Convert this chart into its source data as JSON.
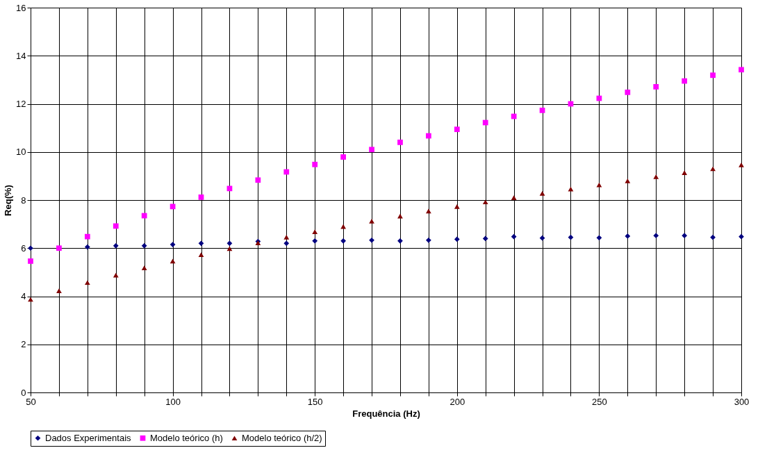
{
  "chart_data": {
    "type": "scatter",
    "xlabel": "Frequência (Hz)",
    "ylabel": "Req(%)",
    "x": [
      50,
      60,
      70,
      80,
      90,
      100,
      110,
      120,
      130,
      140,
      150,
      160,
      170,
      180,
      190,
      200,
      210,
      220,
      230,
      240,
      250,
      260,
      270,
      280,
      290,
      300
    ],
    "series": [
      {
        "name": "Dados Experimentais",
        "color": "#000080",
        "marker": "diamond",
        "values": [
          6.0,
          null,
          6.05,
          6.1,
          6.1,
          6.15,
          6.2,
          6.2,
          6.28,
          6.2,
          6.3,
          6.3,
          6.33,
          6.3,
          6.33,
          6.37,
          6.4,
          6.48,
          6.42,
          6.45,
          6.43,
          6.5,
          6.52,
          6.52,
          6.45,
          6.48
        ]
      },
      {
        "name": "Modelo teórico (h)",
        "color": "#ff00ff",
        "marker": "square",
        "values": [
          5.46,
          6.0,
          6.48,
          6.92,
          7.35,
          7.73,
          8.12,
          8.48,
          8.83,
          9.17,
          9.48,
          9.79,
          10.1,
          10.4,
          10.67,
          10.94,
          11.22,
          11.48,
          11.73,
          12.0,
          12.23,
          12.48,
          12.71,
          12.95,
          13.19,
          13.42
        ]
      },
      {
        "name": "Modelo teórico (h/2)",
        "color": "#800000",
        "marker": "triangle",
        "values": [
          3.87,
          4.23,
          4.57,
          4.88,
          5.18,
          5.46,
          5.73,
          5.98,
          6.22,
          6.46,
          6.68,
          6.9,
          7.12,
          7.33,
          7.54,
          7.73,
          7.92,
          8.1,
          8.28,
          8.46,
          8.63,
          8.8,
          8.97,
          9.14,
          9.3,
          9.46
        ]
      }
    ],
    "xlim": [
      50,
      300
    ],
    "xticks": [
      50,
      {
        "value": 60,
        "label": null
      },
      {
        "value": 70,
        "label": null
      },
      {
        "value": 80,
        "label": null
      },
      {
        "value": 90,
        "label": null
      },
      100,
      {
        "value": 110,
        "label": null
      },
      {
        "value": 120,
        "label": null
      },
      {
        "value": 130,
        "label": null
      },
      {
        "value": 140,
        "label": null
      },
      150,
      {
        "value": 160,
        "label": null
      },
      {
        "value": 170,
        "label": null
      },
      {
        "value": 180,
        "label": null
      },
      {
        "value": 190,
        "label": null
      },
      200,
      {
        "value": 210,
        "label": null
      },
      {
        "value": 220,
        "label": null
      },
      {
        "value": 230,
        "label": null
      },
      {
        "value": 240,
        "label": null
      },
      250,
      {
        "value": 260,
        "label": null
      },
      {
        "value": 270,
        "label": null
      },
      {
        "value": 280,
        "label": null
      },
      {
        "value": 290,
        "label": null
      },
      300
    ],
    "ylim": [
      0,
      16
    ],
    "yticks": [
      0,
      2,
      4,
      6,
      8,
      10,
      12,
      14,
      16
    ],
    "grid": true,
    "legend": "bottom"
  }
}
